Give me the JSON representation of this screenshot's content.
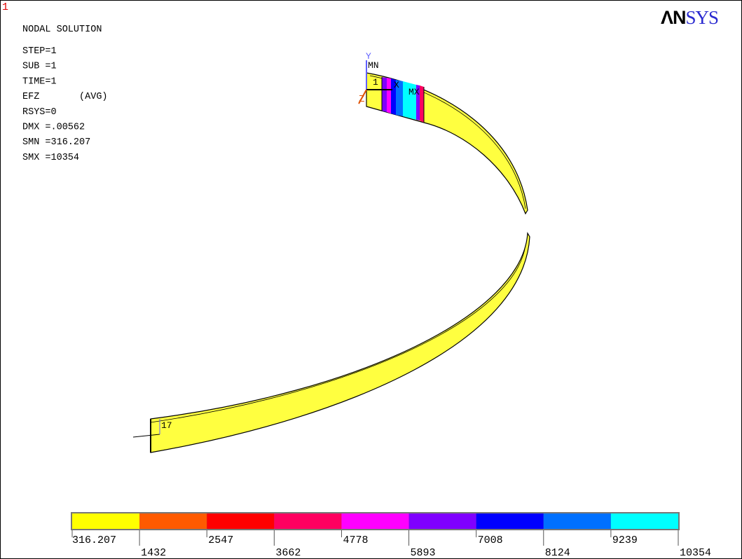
{
  "window_number": "1",
  "logo": {
    "bold": "ΛN",
    "rest": "SYS"
  },
  "info": {
    "title": "NODAL SOLUTION",
    "lines": [
      "STEP=1",
      "SUB =1",
      "TIME=1",
      "EFZ       (AVG)",
      "RSYS=0",
      "DMX =.00562",
      "SMN =316.207",
      "SMX =10354"
    ]
  },
  "model_labels": {
    "y_axis": "Y",
    "min": "MN",
    "node_top": "1",
    "x_axis": "X",
    "max": "MX",
    "z_axis": "Z",
    "node_bottom": "17"
  },
  "legend": {
    "colors": [
      "#ffff00",
      "#ff5a00",
      "#ff0000",
      "#ff0060",
      "#ff00ff",
      "#7f00ff",
      "#0000ff",
      "#0070ff",
      "#00ffff"
    ],
    "labels": [
      "316.207",
      "1432",
      "2547",
      "3662",
      "4778",
      "5893",
      "7008",
      "8124",
      "9239",
      "10354"
    ]
  }
}
